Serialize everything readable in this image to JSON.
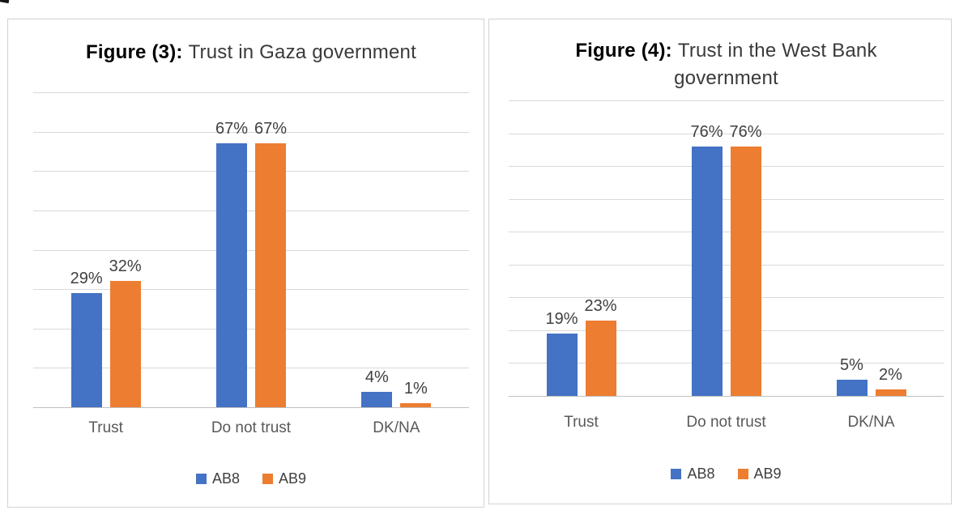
{
  "theme": {
    "series_blue": "#4472C4",
    "series_orange": "#ED7D31",
    "gridline_color": "#D9D9D9",
    "axis_color": "#BFBFBF",
    "category_text_color": "#595959",
    "data_label_color": "#404040",
    "title_color": "#3A3A3A",
    "title_prefix_color": "#000000",
    "panel_border_color": "#D2D2D2",
    "background": "#FFFFFF"
  },
  "chart_data": [
    {
      "type": "bar",
      "title": "Figure (3): Trust in Gaza government",
      "title_prefix": "Figure (3):",
      "title_rest_line1": "Trust in Gaza government",
      "title_rest_line2": "",
      "categories": [
        "Trust",
        "Do not trust",
        "DK/NA"
      ],
      "series": [
        {
          "name": "AB8",
          "color": "#4472C4",
          "values": [
            29,
            67,
            4
          ],
          "data_labels": [
            "29%",
            "67%",
            "4%"
          ]
        },
        {
          "name": "AB9",
          "color": "#ED7D31",
          "values": [
            32,
            67,
            1
          ],
          "data_labels": [
            "32%",
            "67%",
            "1%"
          ]
        }
      ],
      "xlabel": "",
      "ylabel": "",
      "ylim": [
        0,
        80
      ],
      "tick_step": 10,
      "grid": true,
      "y_axis_labels_shown": false,
      "legend_position": "bottom"
    },
    {
      "type": "bar",
      "title": "Figure (4): Trust in the West Bank government",
      "title_prefix": "Figure (4):",
      "title_rest_line1": "Trust in the West Bank",
      "title_rest_line2": "government",
      "categories": [
        "Trust",
        "Do not trust",
        "DK/NA"
      ],
      "series": [
        {
          "name": "AB8",
          "color": "#4472C4",
          "values": [
            19,
            76,
            5
          ],
          "data_labels": [
            "19%",
            "76%",
            "5%"
          ]
        },
        {
          "name": "AB9",
          "color": "#ED7D31",
          "values": [
            23,
            76,
            2
          ],
          "data_labels": [
            "23%",
            "76%",
            "2%"
          ]
        }
      ],
      "xlabel": "",
      "ylabel": "",
      "ylim": [
        0,
        90
      ],
      "tick_step": 10,
      "grid": true,
      "y_axis_labels_shown": false,
      "legend_position": "bottom"
    }
  ]
}
